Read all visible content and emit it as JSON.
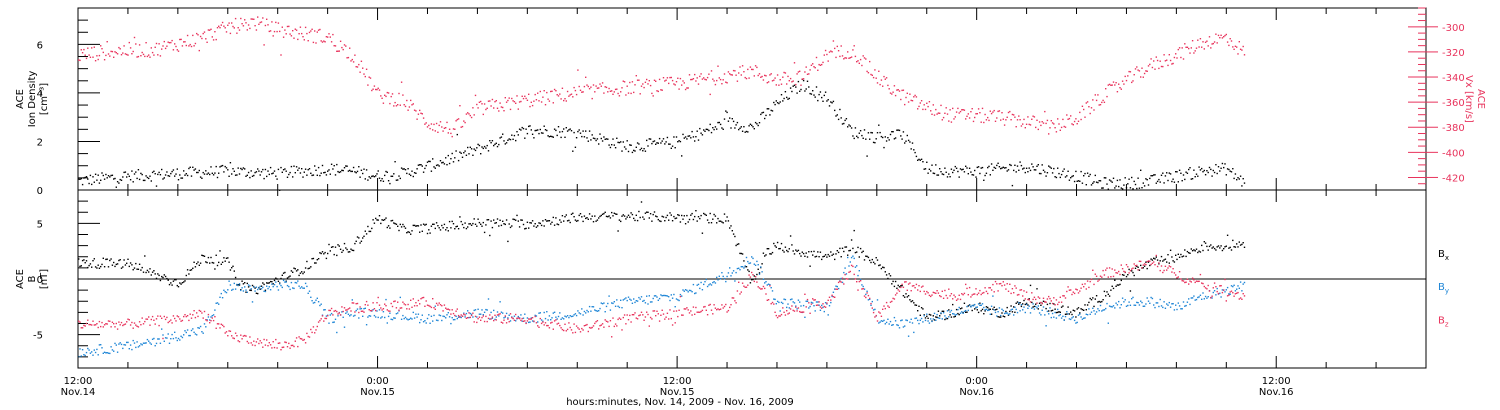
{
  "figure": {
    "xlabel": "hours:minutes, Nov. 14, 2009 - Nov. 16, 2009",
    "colors": {
      "black": "#000000",
      "pink": "#e8335c",
      "blue": "#1f86d6"
    }
  },
  "chart_data": [
    {
      "type": "scatter",
      "ylabel_lines": [
        "ACE",
        "Ion Density",
        "[cm⁻³]"
      ],
      "ylim": [
        0,
        7.5
      ],
      "yticks": [
        0,
        2,
        4,
        6
      ],
      "ylim_right": [
        -430,
        -285
      ],
      "yticks_right": [
        -300,
        -320,
        -340,
        -360,
        -380,
        -400,
        -420
      ],
      "ylabel_right": "ACE\nVx [km/s]",
      "x_range_hours": [
        0,
        48
      ],
      "series": [
        {
          "name": "",
          "axis": "left",
          "color": "#000000",
          "x": [
            0,
            2,
            4,
            6,
            8,
            10,
            11,
            12,
            13,
            14,
            16,
            18,
            20,
            22,
            24,
            26,
            27,
            28,
            29,
            30,
            31,
            32,
            33,
            34,
            35,
            36,
            37,
            38,
            39,
            40,
            41,
            42,
            43,
            44,
            45,
            46,
            46.7
          ],
          "y": [
            0.4,
            0.6,
            0.7,
            0.8,
            0.7,
            0.9,
            0.8,
            0.6,
            0.7,
            1.0,
            1.7,
            2.5,
            2.4,
            1.8,
            2.0,
            2.8,
            2.6,
            3.6,
            4.4,
            3.8,
            2.4,
            2.2,
            2.3,
            0.9,
            0.8,
            0.8,
            0.9,
            1.0,
            0.8,
            0.6,
            0.3,
            0.3,
            0.4,
            0.6,
            0.8,
            0.9,
            0.3
          ]
        },
        {
          "name": "",
          "axis": "right",
          "color": "#e8335c",
          "x": [
            0,
            2,
            3,
            4,
            5,
            6,
            7,
            8,
            9,
            10,
            10.5,
            11,
            12,
            13,
            14,
            15,
            16,
            18,
            20,
            22,
            24,
            26,
            27,
            28,
            29,
            29.5,
            30,
            31,
            32,
            33,
            34,
            35,
            36,
            37,
            38,
            39,
            40,
            41,
            42,
            43,
            44,
            45,
            46,
            46.7
          ],
          "y": [
            -322,
            -318,
            -318,
            -313,
            -308,
            -300,
            -296,
            -302,
            -305,
            -308,
            -315,
            -322,
            -354,
            -358,
            -376,
            -382,
            -365,
            -358,
            -352,
            -348,
            -345,
            -338,
            -335,
            -342,
            -340,
            -330,
            -322,
            -318,
            -340,
            -355,
            -364,
            -370,
            -370,
            -372,
            -375,
            -380,
            -372,
            -355,
            -342,
            -330,
            -322,
            -312,
            -308,
            -320
          ]
        }
      ]
    },
    {
      "type": "scatter",
      "ylabel_lines": [
        "ACE",
        "B",
        "[nT]"
      ],
      "ylim": [
        -8,
        8
      ],
      "yticks": [
        -5,
        0,
        5
      ],
      "zero_line": true,
      "x_range_hours": [
        0,
        48
      ],
      "series": [
        {
          "name": "Bx",
          "color": "#000000",
          "x": [
            0,
            2,
            3,
            4,
            5,
            6,
            6.5,
            7,
            8,
            9,
            10,
            11,
            12,
            13,
            14,
            16,
            18,
            20,
            22,
            24,
            26,
            27,
            27.5,
            28,
            30,
            31,
            32,
            33,
            34,
            35,
            36,
            37,
            38,
            39,
            40,
            41,
            42,
            43,
            44,
            45,
            46,
            46.7
          ],
          "y": [
            1.5,
            1.4,
            0.5,
            -0.3,
            2.0,
            1.5,
            -0.5,
            -1.0,
            0.0,
            1.0,
            2.5,
            3.0,
            5.5,
            4.5,
            4.6,
            5.1,
            5.0,
            5.6,
            5.7,
            5.6,
            5.5,
            -0.5,
            2.5,
            3.0,
            2.0,
            2.8,
            1.5,
            -1.0,
            -3.5,
            -3.0,
            -2.5,
            -3.0,
            -2.0,
            -2.5,
            -3.0,
            -1.5,
            0.5,
            1.5,
            2.0,
            3.0,
            3.0,
            3.3
          ]
        },
        {
          "name": "By",
          "color": "#1f86d6",
          "x": [
            0,
            2,
            4,
            5,
            6,
            7,
            8,
            9,
            10,
            11,
            12,
            14,
            16,
            18,
            20,
            22,
            24,
            26,
            27,
            28,
            30,
            31,
            32,
            33,
            34,
            35,
            36,
            37,
            38,
            39,
            40,
            41,
            42,
            43,
            44,
            45,
            46,
            46.7
          ],
          "y": [
            -6.5,
            -6.0,
            -5.0,
            -4.5,
            -0.5,
            -1.0,
            -0.5,
            -0.5,
            -3.5,
            -3.0,
            -3.0,
            -3.5,
            -3.0,
            -3.5,
            -3.0,
            -2.0,
            -1.5,
            0.5,
            2.0,
            -2.0,
            -2.5,
            2.0,
            -3.5,
            -4.0,
            -3.5,
            -3.0,
            -2.5,
            -3.0,
            -2.5,
            -3.0,
            -3.5,
            -2.5,
            -2.0,
            -2.0,
            -2.5,
            -1.5,
            -1.0,
            -0.5
          ]
        },
        {
          "name": "Bz",
          "color": "#e8335c",
          "x": [
            0,
            2,
            4,
            5,
            6,
            7,
            8,
            9,
            10,
            11,
            12,
            14,
            16,
            18,
            20,
            22,
            24,
            26,
            27,
            28,
            30,
            31,
            32,
            33,
            34,
            35,
            36,
            37,
            38,
            39,
            40,
            41,
            42,
            43,
            44,
            45,
            46,
            46.7
          ],
          "y": [
            -4.0,
            -4.0,
            -3.5,
            -3.0,
            -5.0,
            -5.5,
            -6.0,
            -5.5,
            -3.0,
            -2.5,
            -2.5,
            -2.0,
            -3.5,
            -3.5,
            -4.5,
            -3.5,
            -3.0,
            -2.5,
            0.5,
            -3.0,
            -2.0,
            1.0,
            -3.5,
            -0.5,
            -1.0,
            -1.5,
            -1.0,
            -0.5,
            -1.5,
            -2.0,
            -1.0,
            0.5,
            1.0,
            1.5,
            0.5,
            -0.5,
            -1.0,
            -1.5
          ]
        }
      ]
    }
  ],
  "xaxis": {
    "major_ticks": [
      {
        "hour": 0,
        "line1": "12:00",
        "line2": "Nov.14"
      },
      {
        "hour": 12,
        "line1": "0:00",
        "line2": "Nov.15"
      },
      {
        "hour": 24,
        "line1": "12:00",
        "line2": "Nov.15"
      },
      {
        "hour": 36,
        "line1": "0:00",
        "line2": "Nov.16"
      },
      {
        "hour": 48,
        "line1": "12:00",
        "line2": "Nov.16"
      }
    ],
    "minor_step_hours": 2,
    "domain_hours": [
      0,
      54
    ]
  },
  "legend": [
    {
      "label": "Bx",
      "main": "B",
      "sub": "x",
      "color": "#000000"
    },
    {
      "label": "By",
      "main": "B",
      "sub": "y",
      "color": "#1f86d6"
    },
    {
      "label": "Bz",
      "main": "B",
      "sub": "z",
      "color": "#e8335c"
    }
  ]
}
